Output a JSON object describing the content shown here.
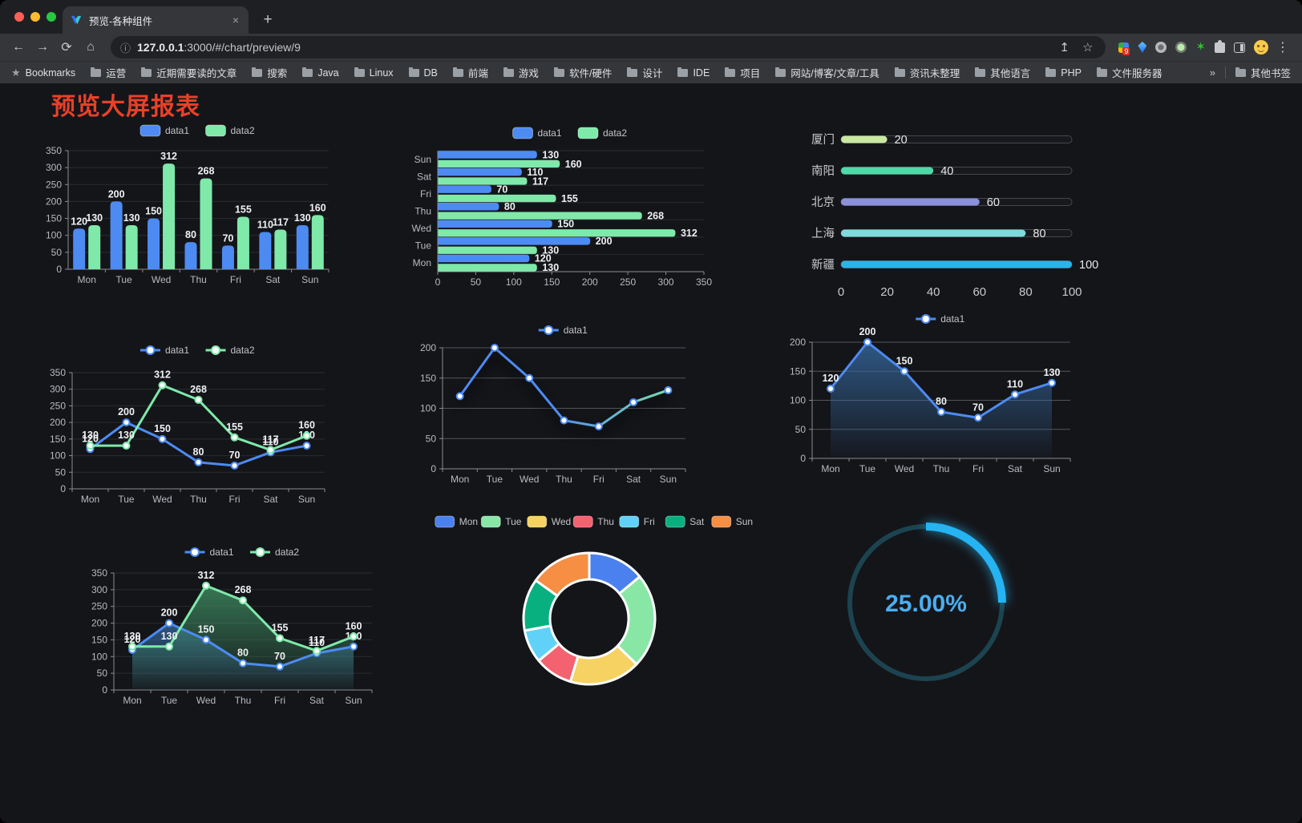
{
  "browser": {
    "tab": {
      "title": "预览-各种组件",
      "close_glyph": "×",
      "new_tab_glyph": "+"
    },
    "toolbar": {
      "back_glyph": "←",
      "forward_glyph": "→",
      "reload_glyph": "⟳",
      "home_glyph": "⌂",
      "info_glyph": "ⓘ",
      "share_glyph": "↥",
      "star_glyph": "☆",
      "menu_glyph": "⋮"
    },
    "url_host": "127.0.0.1",
    "url_rest": ":3000/#/chart/preview/9",
    "bookmarks_label": "Bookmarks",
    "bookmarks_star_glyph": "★",
    "bookmarks": [
      "运营",
      "近期需要读的文章",
      "搜索",
      "Java",
      "Linux",
      "DB",
      "前端",
      "游戏",
      "软件/硬件",
      "设计",
      "IDE",
      "项目",
      "网站/博客/文章/工具",
      "资讯未整理",
      "其他语言",
      "PHP",
      "文件服务器"
    ],
    "bookmarks_overflow_glyph": "»",
    "other_bookmarks_label": "其他书签",
    "extensions": [
      {
        "name": "extensions-badge-icon",
        "badge": "9"
      },
      {
        "name": "gem-extension-icon"
      },
      {
        "name": "gray-circle-extension-icon"
      },
      {
        "name": "green-circle-extension-icon"
      },
      {
        "name": "green-star-extension-icon",
        "glyph": "✶"
      },
      {
        "name": "puzzle-extensions-icon"
      },
      {
        "name": "side-panel-icon"
      },
      {
        "name": "profile-avatar"
      }
    ]
  },
  "page": {
    "title": "预览大屏报表",
    "title_color": "#e8402a",
    "background": "#141519"
  },
  "chart_data": [
    {
      "id": "bar-grouped",
      "type": "bar",
      "categories": [
        "Mon",
        "Tue",
        "Wed",
        "Thu",
        "Fri",
        "Sat",
        "Sun"
      ],
      "series": [
        {
          "name": "data1",
          "color": "#4d8bf3",
          "values": [
            120,
            200,
            150,
            80,
            70,
            110,
            130
          ]
        },
        {
          "name": "data2",
          "color": "#7fe9aa",
          "values": [
            130,
            130,
            312,
            268,
            155,
            117,
            160
          ]
        }
      ],
      "ylim": [
        0,
        350
      ],
      "ystep": 50,
      "legend_position": "top"
    },
    {
      "id": "bar-horizontal",
      "type": "hbar",
      "categories": [
        "Mon",
        "Tue",
        "Wed",
        "Thu",
        "Fri",
        "Sat",
        "Sun"
      ],
      "series": [
        {
          "name": "data1",
          "color": "#4d8bf3",
          "values": [
            120,
            200,
            150,
            80,
            70,
            110,
            130
          ]
        },
        {
          "name": "data2",
          "color": "#7fe9aa",
          "values": [
            130,
            130,
            312,
            268,
            155,
            117,
            160
          ]
        }
      ],
      "xlim": [
        0,
        350
      ],
      "xstep": 50,
      "legend_position": "top"
    },
    {
      "id": "progress-bars",
      "type": "progress",
      "rows": [
        {
          "label": "厦门",
          "value": 20,
          "color": "#c9e8a2"
        },
        {
          "label": "南阳",
          "value": 40,
          "color": "#50d9a8"
        },
        {
          "label": "北京",
          "value": 60,
          "color": "#8b90dc"
        },
        {
          "label": "上海",
          "value": 80,
          "color": "#7edadd"
        },
        {
          "label": "新疆",
          "value": 100,
          "color": "#2cb3e8"
        }
      ],
      "xticks": [
        0,
        20,
        40,
        60,
        80,
        100
      ],
      "xlim": [
        0,
        100
      ]
    },
    {
      "id": "line-dual",
      "type": "line",
      "categories": [
        "Mon",
        "Tue",
        "Wed",
        "Thu",
        "Fri",
        "Sat",
        "Sun"
      ],
      "series": [
        {
          "name": "data1",
          "color": "#4d8bf3",
          "values": [
            120,
            200,
            150,
            80,
            70,
            110,
            130
          ]
        },
        {
          "name": "data2",
          "color": "#7fe9aa",
          "values": [
            130,
            130,
            312,
            268,
            155,
            117,
            160
          ]
        }
      ],
      "ylim": [
        0,
        350
      ],
      "ystep": 50,
      "value_labels": true,
      "legend_position": "top"
    },
    {
      "id": "line-gradient",
      "type": "line",
      "categories": [
        "Mon",
        "Tue",
        "Wed",
        "Thu",
        "Fri",
        "Sat",
        "Sun"
      ],
      "series": [
        {
          "name": "data1",
          "color": "#4d8bf3",
          "gradient": [
            "#4d8bf3",
            "#7fe9aa"
          ],
          "values": [
            120,
            200,
            150,
            80,
            70,
            110,
            130
          ]
        }
      ],
      "ylim": [
        0,
        200
      ],
      "ystep": 50,
      "value_labels": false,
      "grid": "light",
      "shadow": true,
      "legend_position": "top"
    },
    {
      "id": "area-single",
      "type": "line",
      "categories": [
        "Mon",
        "Tue",
        "Wed",
        "Thu",
        "Fri",
        "Sat",
        "Sun"
      ],
      "series": [
        {
          "name": "data1",
          "color": "#4d8bf3",
          "fill": "#36699f",
          "values": [
            120,
            200,
            150,
            80,
            70,
            110,
            130
          ]
        }
      ],
      "ylim": [
        0,
        200
      ],
      "ystep": 50,
      "value_labels": true,
      "grid": "light",
      "legend_position": "top"
    },
    {
      "id": "area-dual",
      "type": "line",
      "categories": [
        "Mon",
        "Tue",
        "Wed",
        "Thu",
        "Fri",
        "Sat",
        "Sun"
      ],
      "series": [
        {
          "name": "data1",
          "color": "#4d8bf3",
          "fill": "#36699f",
          "values": [
            120,
            200,
            150,
            80,
            70,
            110,
            130
          ]
        },
        {
          "name": "data2",
          "color": "#7fe9aa",
          "fill": "#3f8f63",
          "values": [
            130,
            130,
            312,
            268,
            155,
            117,
            160
          ]
        }
      ],
      "ylim": [
        0,
        350
      ],
      "ystep": 50,
      "value_labels": true,
      "legend_position": "top"
    },
    {
      "id": "donut",
      "type": "donut",
      "legend_position": "top",
      "items": [
        {
          "name": "Mon",
          "value": 120,
          "color": "#4b80ef"
        },
        {
          "name": "Tue",
          "value": 200,
          "color": "#89e7a6"
        },
        {
          "name": "Wed",
          "value": 150,
          "color": "#f6d262"
        },
        {
          "name": "Thu",
          "value": 80,
          "color": "#f4616f"
        },
        {
          "name": "Fri",
          "value": 70,
          "color": "#61d2f7"
        },
        {
          "name": "Sat",
          "value": 110,
          "color": "#09b07f"
        },
        {
          "name": "Sun",
          "value": 130,
          "color": "#f68e44"
        }
      ]
    },
    {
      "id": "gauge",
      "type": "gauge",
      "percent": 25,
      "label": "25.00%",
      "color": "#25b3f2",
      "track_color": "#1c4350",
      "text_color": "#4aaef0"
    }
  ]
}
